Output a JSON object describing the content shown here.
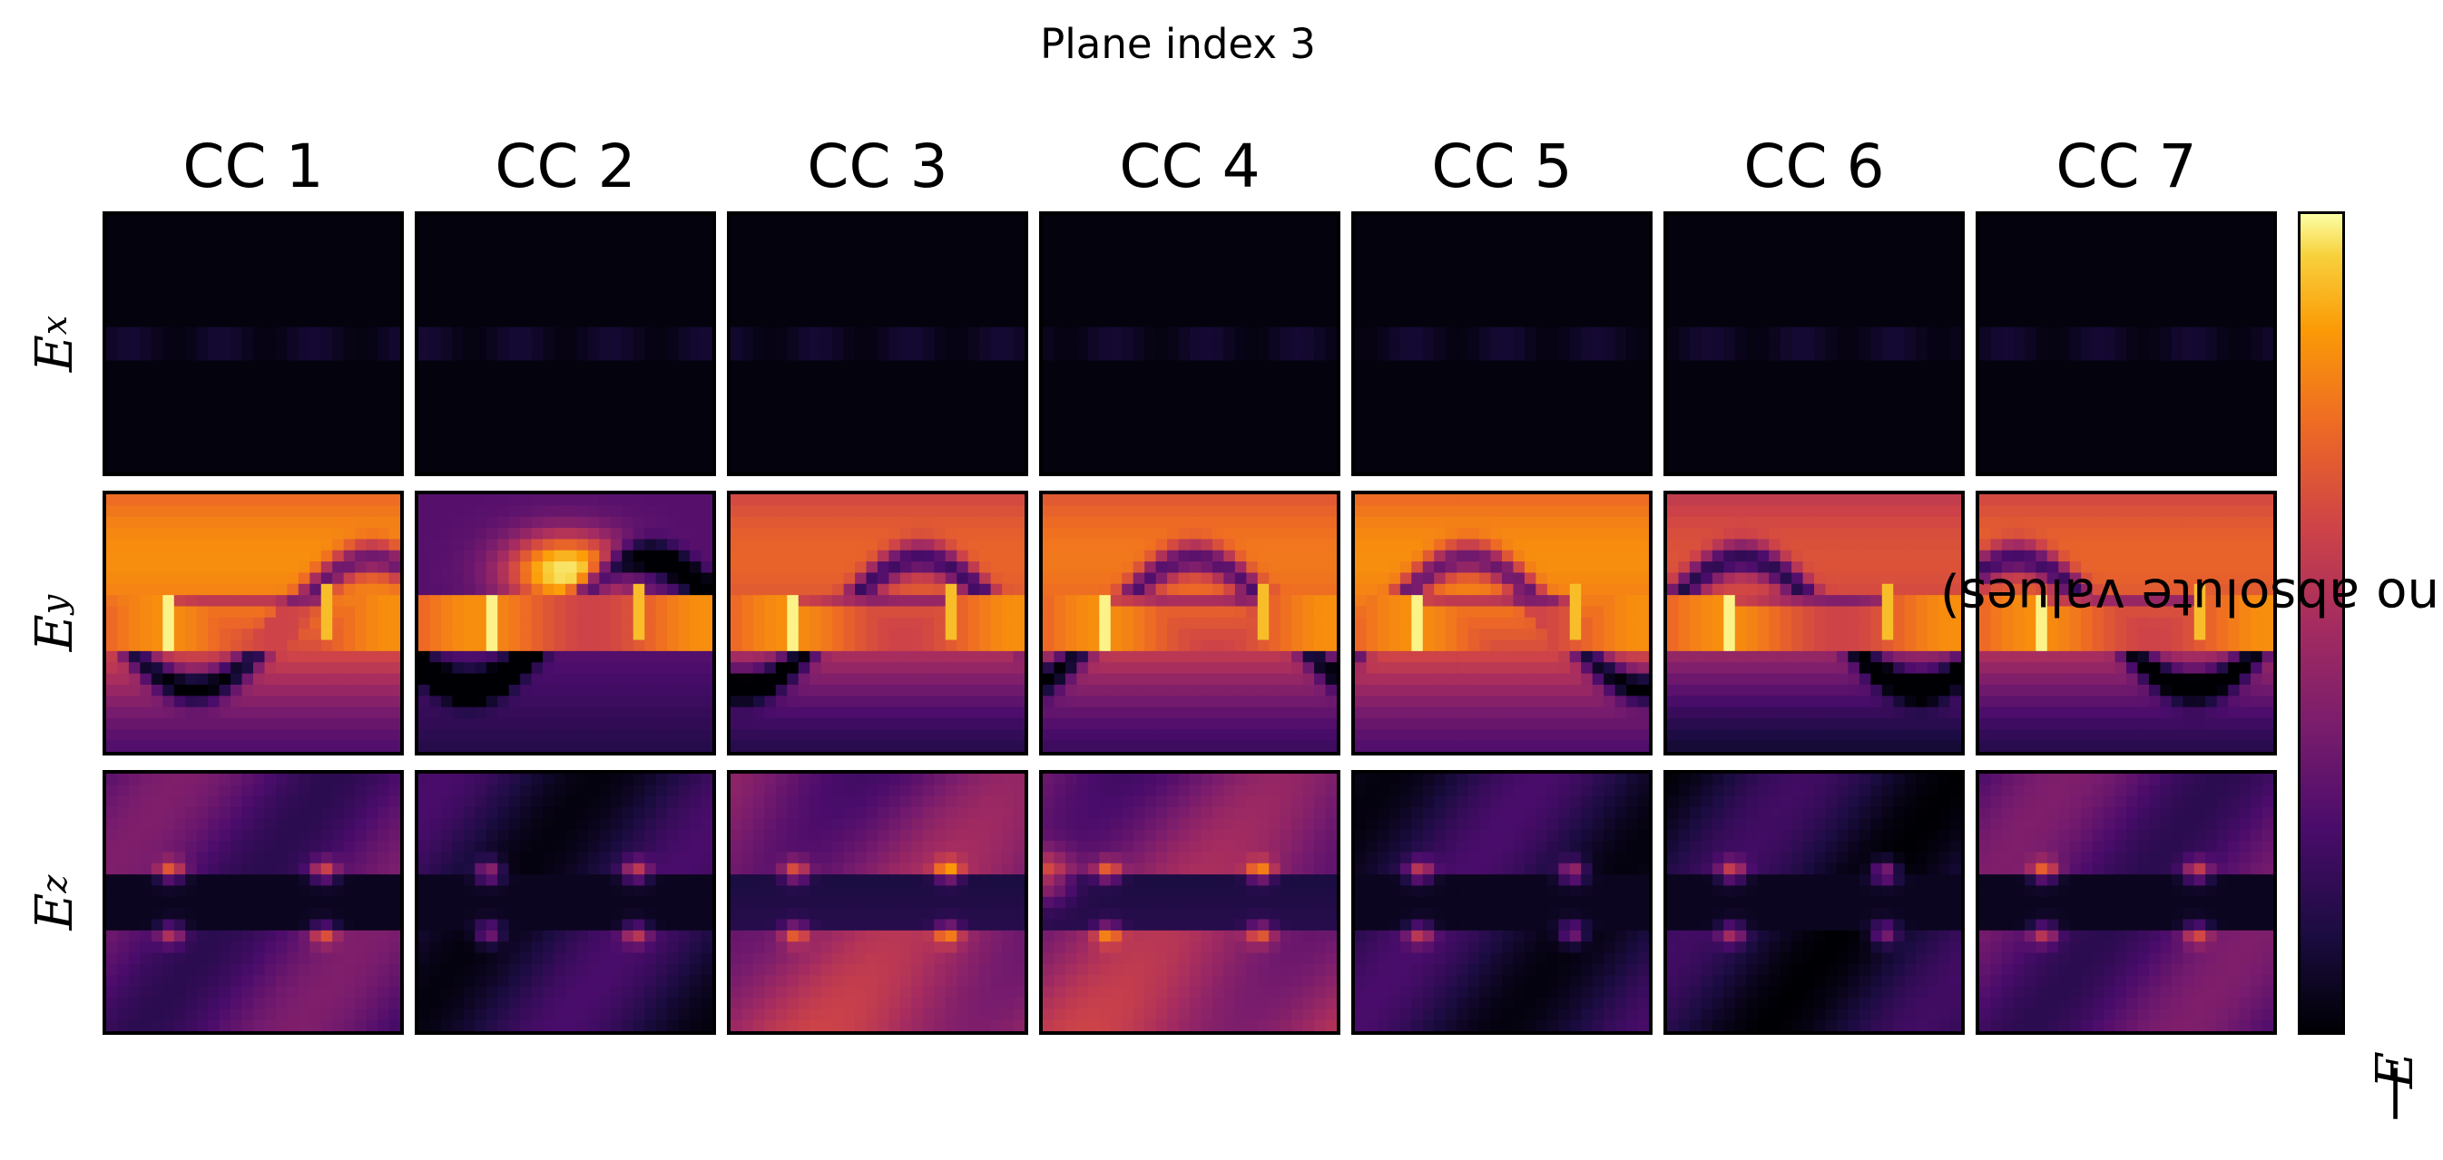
{
  "title": "Plane index 3",
  "columns": [
    "CC 1",
    "CC 2",
    "CC 3",
    "CC 4",
    "CC 5",
    "CC 6",
    "CC 7"
  ],
  "rows": [
    {
      "symbol": "E",
      "sub": "x"
    },
    {
      "symbol": "E",
      "sub": "y"
    },
    {
      "symbol": "E",
      "sub": "z"
    }
  ],
  "colorbar": {
    "label_prefix": "|",
    "label_symbol": "E",
    "label_suffix": "|-field strength (no absolute values)",
    "colormap": "inferno",
    "colors": [
      "#000004",
      "#1b0c41",
      "#4a0c6b",
      "#781c6d",
      "#a52c60",
      "#cf4446",
      "#ed6925",
      "#fb9b06",
      "#f7d13d",
      "#fcffa4"
    ]
  },
  "chart_data": {
    "type": "heatmap",
    "title": "Plane index 3",
    "grid": false,
    "colormap": "inferno",
    "columns": [
      "CC 1",
      "CC 2",
      "CC 3",
      "CC 4",
      "CC 5",
      "CC 6",
      "CC 7"
    ],
    "row_labels": [
      "E_x",
      "E_y",
      "E_z"
    ],
    "colorbar_label": "|E|-field strength (no absolute values)",
    "value_range_normalized": [
      0,
      1
    ],
    "approx_mean_intensity": {
      "E_x": [
        0.02,
        0.02,
        0.02,
        0.02,
        0.02,
        0.02,
        0.02
      ],
      "E_y": [
        0.55,
        0.45,
        0.45,
        0.5,
        0.55,
        0.4,
        0.45
      ],
      "E_z": [
        0.25,
        0.12,
        0.3,
        0.3,
        0.12,
        0.1,
        0.25
      ]
    }
  }
}
